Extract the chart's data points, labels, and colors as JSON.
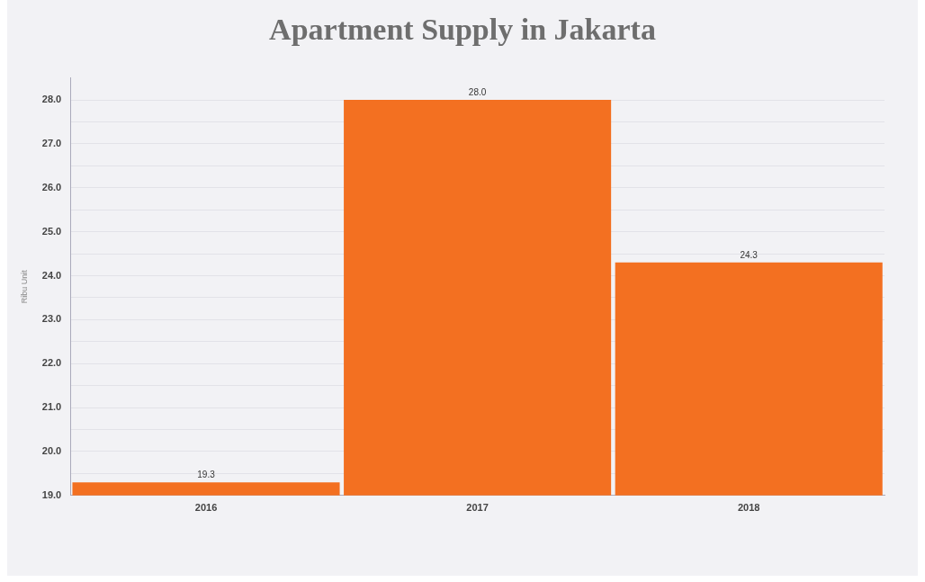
{
  "chart_data": {
    "type": "bar",
    "title": "Apartment Supply in Jakarta",
    "ylabel": "Ribu Unit",
    "categories": [
      "2016",
      "2017",
      "2018"
    ],
    "values": [
      19.3,
      28.0,
      24.3
    ],
    "value_labels": [
      "19.3",
      "28.0",
      "24.3"
    ],
    "color": "#f37021",
    "ylim": [
      19,
      28.5
    ],
    "yticks": [
      {
        "value": 19,
        "label": "19.0"
      },
      {
        "value": 19.5,
        "label": null
      },
      {
        "value": 20,
        "label": "20.0"
      },
      {
        "value": 20.5,
        "label": null
      },
      {
        "value": 21,
        "label": "21.0"
      },
      {
        "value": 21.5,
        "label": null
      },
      {
        "value": 22,
        "label": "22.0"
      },
      {
        "value": 22.5,
        "label": null
      },
      {
        "value": 23,
        "label": "23.0"
      },
      {
        "value": 23.5,
        "label": null
      },
      {
        "value": 24,
        "label": "24.0"
      },
      {
        "value": 24.5,
        "label": null
      },
      {
        "value": 25,
        "label": "25.0"
      },
      {
        "value": 25.5,
        "label": null
      },
      {
        "value": 26,
        "label": "26.0"
      },
      {
        "value": 26.5,
        "label": null
      },
      {
        "value": 27,
        "label": "27.0"
      },
      {
        "value": 27.5,
        "label": null
      },
      {
        "value": 28,
        "label": "28.0"
      }
    ],
    "grid": "y"
  }
}
